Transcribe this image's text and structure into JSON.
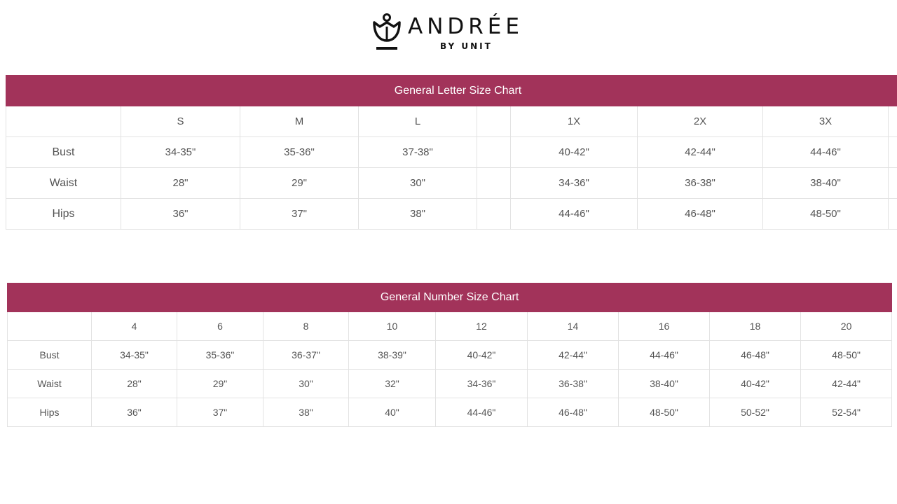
{
  "brand": {
    "name": "ANDRÉE",
    "sub": "BY UNIT"
  },
  "accent_color": "#a2335a",
  "letter_chart": {
    "title": "General Letter Size Chart",
    "columns": [
      "S",
      "M",
      "L",
      "",
      "1X",
      "2X",
      "3X",
      ""
    ],
    "rows": [
      {
        "label": "Bust",
        "values": [
          "34-35\"",
          "35-36\"",
          "37-38\"",
          "",
          "40-42\"",
          "42-44\"",
          "44-46\"",
          ""
        ]
      },
      {
        "label": "Waist",
        "values": [
          "28\"",
          "29\"",
          "30\"",
          "",
          "34-36\"",
          "36-38\"",
          "38-40\"",
          ""
        ]
      },
      {
        "label": "Hips",
        "values": [
          "36\"",
          "37\"",
          "38\"",
          "",
          "44-46\"",
          "46-48\"",
          "48-50\"",
          ""
        ]
      }
    ]
  },
  "number_chart": {
    "title": "General Number Size Chart",
    "columns": [
      "4",
      "6",
      "8",
      "10",
      "12",
      "14",
      "16",
      "18",
      "20"
    ],
    "rows": [
      {
        "label": "Bust",
        "values": [
          "34-35\"",
          "35-36\"",
          "36-37\"",
          "38-39\"",
          "40-42\"",
          "42-44\"",
          "44-46\"",
          "46-48\"",
          "48-50\""
        ]
      },
      {
        "label": "Waist",
        "values": [
          "28\"",
          "29\"",
          "30\"",
          "32\"",
          "34-36\"",
          "36-38\"",
          "38-40\"",
          "40-42\"",
          "42-44\""
        ]
      },
      {
        "label": "Hips",
        "values": [
          "36\"",
          "37\"",
          "38\"",
          "40\"",
          "44-46\"",
          "46-48\"",
          "48-50\"",
          "50-52\"",
          "52-54\""
        ]
      }
    ]
  }
}
